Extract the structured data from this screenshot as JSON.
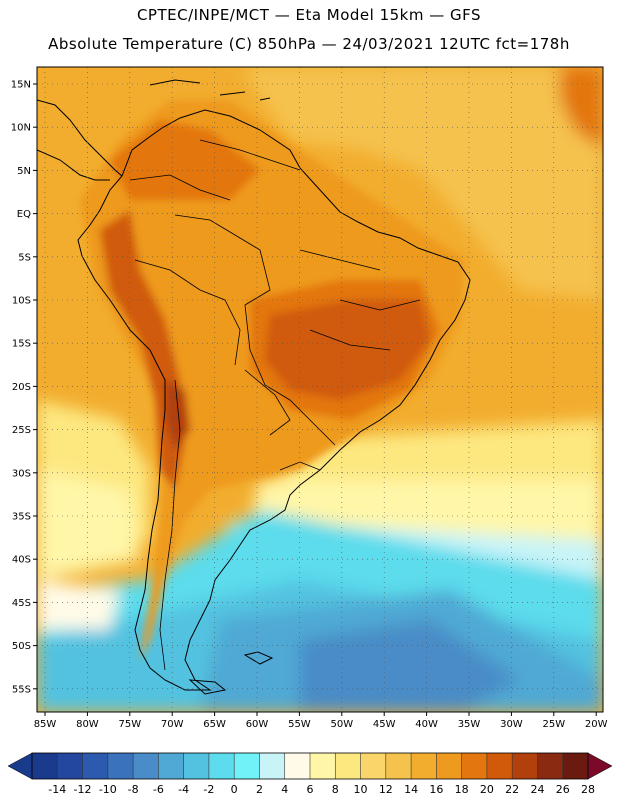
{
  "title_line1": "CPTEC/INPE/MCT —  Eta Model 15km — GFS",
  "title_line2": "Absolute Temperature (C) 850hPa — 24/03/2021 12UTC fct=178h",
  "lat_labels": [
    "15N",
    "10N",
    "5N",
    "EQ",
    "5S",
    "10S",
    "15S",
    "20S",
    "25S",
    "30S",
    "35S",
    "40S",
    "45S",
    "50S",
    "55S"
  ],
  "lon_labels": [
    "85W",
    "80W",
    "75W",
    "70W",
    "65W",
    "60W",
    "55W",
    "50W",
    "45W",
    "40W",
    "35W",
    "30W",
    "25W",
    "20W"
  ],
  "colorbar": {
    "labels": [
      "-14",
      "-12",
      "-10",
      "-8",
      "-6",
      "-4",
      "-2",
      "0",
      "2",
      "4",
      "6",
      "8",
      "10",
      "12",
      "14",
      "16",
      "18",
      "20",
      "22",
      "24",
      "26",
      "28"
    ],
    "colors": [
      "#1a3a8c",
      "#23479e",
      "#2c5aae",
      "#3a72bb",
      "#4a8cc7",
      "#4fa9d4",
      "#52c2e0",
      "#5cdcec",
      "#70f2f8",
      "#c8f4f8",
      "#fffbe8",
      "#fff6a8",
      "#fde880",
      "#fad56a",
      "#f5c24e",
      "#f2ad2e",
      "#ee9a1e",
      "#e3760f",
      "#d05a0a",
      "#b2400c",
      "#8a2a10",
      "#6a1a0e"
    ],
    "low_color": "#1a3a8c",
    "high_color": "#7a0a28"
  },
  "palette": {
    "ocean_warm": "#f2ad2e",
    "ocean_mid": "#f5c24e",
    "ocean_light": "#fde880",
    "cool_pale": "#fff6a8",
    "cream": "#fffbe8",
    "cyan_pale": "#c8f4f8",
    "cyan": "#5cdcec",
    "cyan_mid": "#52c2e0",
    "blue_light": "#4fa9d4",
    "blue": "#4a8cc7",
    "land_hot": "#e3760f",
    "land_hotter": "#d05a0a",
    "land_hottest": "#b2400c"
  }
}
